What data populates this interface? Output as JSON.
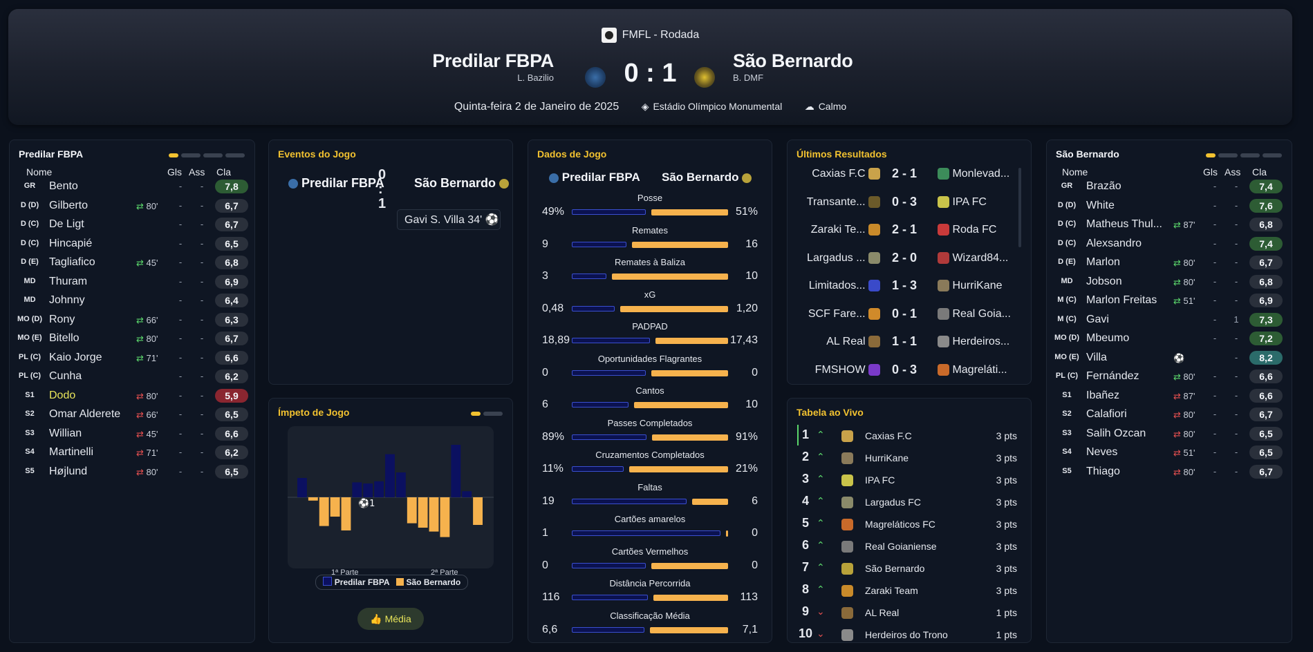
{
  "header": {
    "competition": "FMFL - Rodada",
    "home": {
      "name": "Predilar FBPA",
      "coach": "L. Bazilio"
    },
    "away": {
      "name": "São Bernardo",
      "coach": "B. DMF"
    },
    "score": "0 : 1",
    "date": "Quinta-feira 2 de Janeiro de 2025",
    "stadium": "Estádio Olímpico Monumental",
    "weather": "Calmo",
    "icons": [
      "competition-logo",
      "stadium-icon",
      "weather-icon"
    ]
  },
  "home_lineup": {
    "title": "Predilar FBPA",
    "headers": {
      "name": "Nome",
      "goals": "Gls",
      "assists": "Ass",
      "rating": "Cla"
    },
    "players": [
      {
        "pos": "GR",
        "name": "Bento",
        "sub": "",
        "sub_type": "",
        "g": "-",
        "a": "-",
        "rating": "7,8",
        "rc": "good"
      },
      {
        "pos": "D (D)",
        "name": "Gilberto",
        "sub": "80'",
        "sub_type": "in",
        "g": "-",
        "a": "-",
        "rating": "6,7",
        "rc": ""
      },
      {
        "pos": "D (C)",
        "name": "De Ligt",
        "sub": "",
        "sub_type": "",
        "g": "-",
        "a": "-",
        "rating": "6,7",
        "rc": ""
      },
      {
        "pos": "D (C)",
        "name": "Hincapié",
        "sub": "",
        "sub_type": "",
        "g": "-",
        "a": "-",
        "rating": "6,5",
        "rc": ""
      },
      {
        "pos": "D (E)",
        "name": "Tagliafico",
        "sub": "45'",
        "sub_type": "in",
        "g": "-",
        "a": "-",
        "rating": "6,8",
        "rc": ""
      },
      {
        "pos": "MD",
        "name": "Thuram",
        "sub": "",
        "sub_type": "",
        "g": "-",
        "a": "-",
        "rating": "6,9",
        "rc": ""
      },
      {
        "pos": "MD",
        "name": "Johnny",
        "sub": "",
        "sub_type": "",
        "g": "-",
        "a": "-",
        "rating": "6,4",
        "rc": ""
      },
      {
        "pos": "MO (D)",
        "name": "Rony",
        "sub": "66'",
        "sub_type": "in",
        "g": "-",
        "a": "-",
        "rating": "6,3",
        "rc": ""
      },
      {
        "pos": "MO (E)",
        "name": "Bitello",
        "sub": "80'",
        "sub_type": "in",
        "g": "-",
        "a": "-",
        "rating": "6,7",
        "rc": ""
      },
      {
        "pos": "PL (C)",
        "name": "Kaio Jorge",
        "sub": "71'",
        "sub_type": "in",
        "g": "-",
        "a": "-",
        "rating": "6,6",
        "rc": ""
      },
      {
        "pos": "PL (C)",
        "name": "Cunha",
        "sub": "",
        "sub_type": "",
        "g": "-",
        "a": "-",
        "rating": "6,2",
        "rc": ""
      },
      {
        "pos": "S1",
        "name": "Dodo",
        "sub": "80'",
        "sub_type": "out",
        "g": "-",
        "a": "-",
        "rating": "5,9",
        "rc": "bad",
        "hl": true
      },
      {
        "pos": "S2",
        "name": "Omar Alderete",
        "sub": "66'",
        "sub_type": "out",
        "g": "-",
        "a": "-",
        "rating": "6,5",
        "rc": ""
      },
      {
        "pos": "S3",
        "name": "Willian",
        "sub": "45'",
        "sub_type": "out",
        "g": "-",
        "a": "-",
        "rating": "6,6",
        "rc": ""
      },
      {
        "pos": "S4",
        "name": "Martinelli",
        "sub": "71'",
        "sub_type": "out",
        "g": "-",
        "a": "-",
        "rating": "6,2",
        "rc": ""
      },
      {
        "pos": "S5",
        "name": "Højlund",
        "sub": "80'",
        "sub_type": "out",
        "g": "-",
        "a": "-",
        "rating": "6,5",
        "rc": ""
      }
    ]
  },
  "away_lineup": {
    "title": "São Bernardo",
    "headers": {
      "name": "Nome",
      "goals": "Gls",
      "assists": "Ass",
      "rating": "Cla"
    },
    "players": [
      {
        "pos": "GR",
        "name": "Brazão",
        "sub": "",
        "sub_type": "",
        "g": "-",
        "a": "-",
        "rating": "7,4",
        "rc": "good"
      },
      {
        "pos": "D (D)",
        "name": "White",
        "sub": "",
        "sub_type": "",
        "g": "-",
        "a": "-",
        "rating": "7,6",
        "rc": "good"
      },
      {
        "pos": "D (C)",
        "name": "Matheus Thul...",
        "sub": "87'",
        "sub_type": "in",
        "g": "-",
        "a": "-",
        "rating": "6,8",
        "rc": ""
      },
      {
        "pos": "D (C)",
        "name": "Alexsandro",
        "sub": "",
        "sub_type": "",
        "g": "-",
        "a": "-",
        "rating": "7,4",
        "rc": "good"
      },
      {
        "pos": "D (E)",
        "name": "Marlon",
        "sub": "80'",
        "sub_type": "in",
        "g": "-",
        "a": "-",
        "rating": "6,7",
        "rc": ""
      },
      {
        "pos": "MD",
        "name": "Jobson",
        "sub": "80'",
        "sub_type": "in",
        "g": "-",
        "a": "-",
        "rating": "6,8",
        "rc": ""
      },
      {
        "pos": "M (C)",
        "name": "Marlon Freitas",
        "sub": "51'",
        "sub_type": "in",
        "g": "-",
        "a": "-",
        "rating": "6,9",
        "rc": ""
      },
      {
        "pos": "M (C)",
        "name": "Gavi",
        "sub": "",
        "sub_type": "",
        "g": "-",
        "a": "1",
        "rating": "7,3",
        "rc": "good"
      },
      {
        "pos": "MO (D)",
        "name": "Mbeumo",
        "sub": "",
        "sub_type": "",
        "g": "-",
        "a": "-",
        "rating": "7,2",
        "rc": "good"
      },
      {
        "pos": "MO (E)",
        "name": "Villa",
        "sub": "",
        "sub_type": "goal",
        "g": "",
        "a": "-",
        "rating": "8,2",
        "rc": "best"
      },
      {
        "pos": "PL (C)",
        "name": "Fernández",
        "sub": "80'",
        "sub_type": "in",
        "g": "-",
        "a": "-",
        "rating": "6,6",
        "rc": ""
      },
      {
        "pos": "S1",
        "name": "Ibañez",
        "sub": "87'",
        "sub_type": "out",
        "g": "-",
        "a": "-",
        "rating": "6,6",
        "rc": ""
      },
      {
        "pos": "S2",
        "name": "Calafiori",
        "sub": "80'",
        "sub_type": "out",
        "g": "-",
        "a": "-",
        "rating": "6,7",
        "rc": ""
      },
      {
        "pos": "S3",
        "name": "Salih Ozcan",
        "sub": "80'",
        "sub_type": "out",
        "g": "-",
        "a": "-",
        "rating": "6,5",
        "rc": ""
      },
      {
        "pos": "S4",
        "name": "Neves",
        "sub": "51'",
        "sub_type": "out",
        "g": "-",
        "a": "-",
        "rating": "6,5",
        "rc": ""
      },
      {
        "pos": "S5",
        "name": "Thiago",
        "sub": "80'",
        "sub_type": "out",
        "g": "-",
        "a": "-",
        "rating": "6,7",
        "rc": ""
      }
    ]
  },
  "events": {
    "title": "Eventos do Jogo",
    "home": "Predilar FBPA",
    "away": "São Bernardo",
    "score_top": "0 :",
    "score_bottom": "1",
    "goal": "Gavi  S. Villa 34'"
  },
  "momentum": {
    "title": "Ímpeto de Jogo",
    "half1": "1ª Parte",
    "half2": "2ª Parte",
    "legend_home": "Predilar FBPA",
    "legend_away": "São Bernardo",
    "button": "Média",
    "colors": {
      "home": "#0b1060",
      "away": "#f6b24d"
    },
    "home_values": [
      0.35,
      0,
      0,
      0,
      0,
      0.27,
      0.25,
      0.29,
      0.78,
      0.45,
      0,
      0,
      0,
      0,
      0.95,
      0.11,
      0
    ],
    "away_values": [
      0,
      0.06,
      0.52,
      0.35,
      0.6,
      0,
      0,
      0,
      0,
      0,
      0.47,
      0.55,
      0.62,
      0.72,
      0,
      0,
      0.5
    ],
    "goal_marker": "1"
  },
  "stats": {
    "title": "Dados de Jogo",
    "home": "Predilar FBPA",
    "away": "São Bernardo",
    "rows": [
      {
        "label": "Posse",
        "h": "49%",
        "a": "51%",
        "hv": 49,
        "av": 51
      },
      {
        "label": "Remates",
        "h": "9",
        "a": "16",
        "hv": 9,
        "av": 16
      },
      {
        "label": "Remates à Baliza",
        "h": "3",
        "a": "10",
        "hv": 3,
        "av": 10
      },
      {
        "label": "xG",
        "h": "0,48",
        "a": "1,20",
        "hv": 0.48,
        "av": 1.2
      },
      {
        "label": "PADPAD",
        "h": "18,89",
        "a": "17,43",
        "hv": 18.89,
        "av": 17.43
      },
      {
        "label": "Oportunidades Flagrantes",
        "h": "0",
        "a": "0",
        "hv": 0,
        "av": 0
      },
      {
        "label": "Cantos",
        "h": "6",
        "a": "10",
        "hv": 6,
        "av": 10
      },
      {
        "label": "Passes Completados",
        "h": "89%",
        "a": "91%",
        "hv": 89,
        "av": 91
      },
      {
        "label": "Cruzamentos Completados",
        "h": "11%",
        "a": "21%",
        "hv": 11,
        "av": 21
      },
      {
        "label": "Faltas",
        "h": "19",
        "a": "6",
        "hv": 19,
        "av": 6
      },
      {
        "label": "Cartões amarelos",
        "h": "1",
        "a": "0",
        "hv": 1,
        "av": 0
      },
      {
        "label": "Cartões Vermelhos",
        "h": "0",
        "a": "0",
        "hv": 0,
        "av": 0
      },
      {
        "label": "Distância Percorrida",
        "h": "116",
        "a": "113",
        "hv": 116,
        "av": 113
      },
      {
        "label": "Classificação Média",
        "h": "6,6",
        "a": "7,1",
        "hv": 6.6,
        "av": 7.1
      }
    ]
  },
  "results": {
    "title": "Últimos Resultados",
    "rows": [
      {
        "home": "Caxias F.C",
        "score": "2 - 1",
        "away": "Monlevad...",
        "hc": "#c9a24a",
        "ac": "#3c8c5a"
      },
      {
        "home": "Transante...",
        "score": "0 - 3",
        "away": "IPA FC",
        "hc": "#6b5a2a",
        "ac": "#c9c34a"
      },
      {
        "home": "Zaraki Te...",
        "score": "2 - 1",
        "away": "Roda FC",
        "hc": "#c98a2a",
        "ac": "#c93a3a"
      },
      {
        "home": "Largadus ...",
        "score": "2 - 0",
        "away": "Wizard84...",
        "hc": "#8a8a6a",
        "ac": "#b03a3a"
      },
      {
        "home": "Limitados...",
        "score": "1 - 3",
        "away": "HurriKane",
        "hc": "#3a4ac9",
        "ac": "#8a7a5a"
      },
      {
        "home": "SCF Fare...",
        "score": "0 - 1",
        "away": "Real Goia...",
        "hc": "#d08a2a",
        "ac": "#7a7a7a"
      },
      {
        "home": "AL Real",
        "score": "1 - 1",
        "away": "Herdeiros...",
        "hc": "#8a6a3a",
        "ac": "#8a8a8a"
      },
      {
        "home": "FMSHOW",
        "score": "0 - 3",
        "away": "Magreláti...",
        "hc": "#7a3ac9",
        "ac": "#c96a2a"
      }
    ]
  },
  "table": {
    "title": "Tabela ao Vivo",
    "rows": [
      {
        "pos": "1",
        "dir": "up",
        "team": "Caxias F.C",
        "pts": "3 pts",
        "c": "#c9a24a"
      },
      {
        "pos": "2",
        "dir": "up",
        "team": "HurriKane",
        "pts": "3 pts",
        "c": "#8a7a5a"
      },
      {
        "pos": "3",
        "dir": "up",
        "team": "IPA FC",
        "pts": "3 pts",
        "c": "#c9c34a"
      },
      {
        "pos": "4",
        "dir": "up",
        "team": "Largadus FC",
        "pts": "3 pts",
        "c": "#8a8a6a"
      },
      {
        "pos": "5",
        "dir": "up",
        "team": "Magreláticos FC",
        "pts": "3 pts",
        "c": "#c96a2a"
      },
      {
        "pos": "6",
        "dir": "up",
        "team": "Real Goianiense",
        "pts": "3 pts",
        "c": "#7a7a7a"
      },
      {
        "pos": "7",
        "dir": "up",
        "team": "São Bernardo",
        "pts": "3 pts",
        "c": "#b8a23a"
      },
      {
        "pos": "8",
        "dir": "up",
        "team": "Zaraki Team",
        "pts": "3 pts",
        "c": "#c98a2a"
      },
      {
        "pos": "9",
        "dir": "down",
        "team": "AL Real",
        "pts": "1 pts",
        "c": "#8a6a3a"
      },
      {
        "pos": "10",
        "dir": "down",
        "team": "Herdeiros do Trono",
        "pts": "1 pts",
        "c": "#8a8a8a"
      }
    ]
  }
}
